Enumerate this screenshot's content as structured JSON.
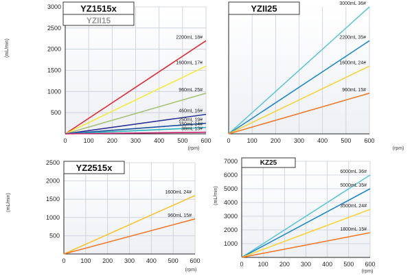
{
  "charts": [
    {
      "id": "p1",
      "title": "YZ1515x",
      "subtitle": "YZII15",
      "ylabel": "(mL/min)",
      "xlabel": "(rpm)",
      "xlim": [
        0,
        600
      ],
      "ylim": [
        0,
        3000
      ],
      "xticks": [
        0,
        100,
        200,
        300,
        400,
        500,
        600
      ],
      "yticks": [
        500,
        1000,
        1500,
        2000,
        2500,
        3000
      ],
      "series": [
        {
          "label": "2200mL 18#",
          "color": "#e8262f",
          "x": [
            0,
            600
          ],
          "y": [
            0,
            2200
          ]
        },
        {
          "label": "1600mL 17#",
          "color": "#f2ec3a",
          "x": [
            0,
            600
          ],
          "y": [
            0,
            1600
          ]
        },
        {
          "label": "960mL 25#",
          "color": "#a9bf7c",
          "x": [
            0,
            600
          ],
          "y": [
            0,
            960
          ]
        },
        {
          "label": "460mL 16#",
          "color": "#2a2f8f",
          "x": [
            0,
            600
          ],
          "y": [
            0,
            460
          ]
        },
        {
          "label": "250mL 19#",
          "color": "#1b4f9c",
          "x": [
            0,
            600
          ],
          "y": [
            0,
            250
          ]
        },
        {
          "label": "150mL 14#",
          "color": "#2ab3b8",
          "x": [
            0,
            600
          ],
          "y": [
            0,
            150
          ]
        },
        {
          "label": "38mL 13#",
          "color": "#c81e6f",
          "x": [
            0,
            600
          ],
          "y": [
            0,
            38
          ]
        }
      ]
    },
    {
      "id": "p2",
      "title": "YZII25",
      "subtitle": "",
      "ylabel": "",
      "xlabel": "(rpm)",
      "xlim": [
        0,
        600
      ],
      "ylim": [
        0,
        3000
      ],
      "xticks": [
        0,
        100,
        200,
        300,
        400,
        500,
        600
      ],
      "yticks": [],
      "series": [
        {
          "label": "3000mL 36#",
          "color": "#5fc6d6",
          "x": [
            0,
            600
          ],
          "y": [
            0,
            3000
          ]
        },
        {
          "label": "2200mL 35#",
          "color": "#1e88c8",
          "x": [
            0,
            600
          ],
          "y": [
            0,
            2200
          ]
        },
        {
          "label": "1600mL 24#",
          "color": "#f5d43a",
          "x": [
            0,
            600
          ],
          "y": [
            0,
            1600
          ]
        },
        {
          "label": "960mL 15#",
          "color": "#f07a2a",
          "x": [
            0,
            600
          ],
          "y": [
            0,
            960
          ]
        }
      ]
    },
    {
      "id": "p3",
      "title": "YZ2515x",
      "subtitle": "",
      "ylabel": "(mL/min)",
      "xlabel": "(rpm)",
      "xlim": [
        0,
        600
      ],
      "ylim": [
        0,
        2500
      ],
      "xticks": [
        0,
        100,
        200,
        300,
        400,
        500,
        600
      ],
      "yticks": [
        500,
        1000,
        1500,
        2000,
        2500
      ],
      "series": [
        {
          "label": "1600mL 24#",
          "color": "#f5c62e",
          "x": [
            0,
            600
          ],
          "y": [
            0,
            1600
          ]
        },
        {
          "label": "960mL 15#",
          "color": "#f07a2a",
          "x": [
            0,
            600
          ],
          "y": [
            0,
            960
          ]
        }
      ]
    },
    {
      "id": "p4",
      "title": "KZ25",
      "subtitle": "",
      "ylabel": "(mL/min)",
      "xlabel": "(rpm)",
      "xlim": [
        0,
        600
      ],
      "ylim": [
        0,
        7000
      ],
      "xticks": [
        0,
        100,
        200,
        300,
        400,
        500,
        600
      ],
      "yticks": [
        1000,
        2000,
        3000,
        4000,
        5000,
        6000,
        7000
      ],
      "series": [
        {
          "label": "6000mL 36#",
          "color": "#5fc6d6",
          "x": [
            0,
            600
          ],
          "y": [
            0,
            6000
          ]
        },
        {
          "label": "5000mL 35#",
          "color": "#1e88c8",
          "x": [
            0,
            600
          ],
          "y": [
            0,
            5000
          ]
        },
        {
          "label": "3500mL 24#",
          "color": "#f5d43a",
          "x": [
            0,
            600
          ],
          "y": [
            0,
            3500
          ]
        },
        {
          "label": "1800mL 15#",
          "color": "#f07a2a",
          "x": [
            0,
            600
          ],
          "y": [
            0,
            1800
          ]
        }
      ]
    }
  ]
}
